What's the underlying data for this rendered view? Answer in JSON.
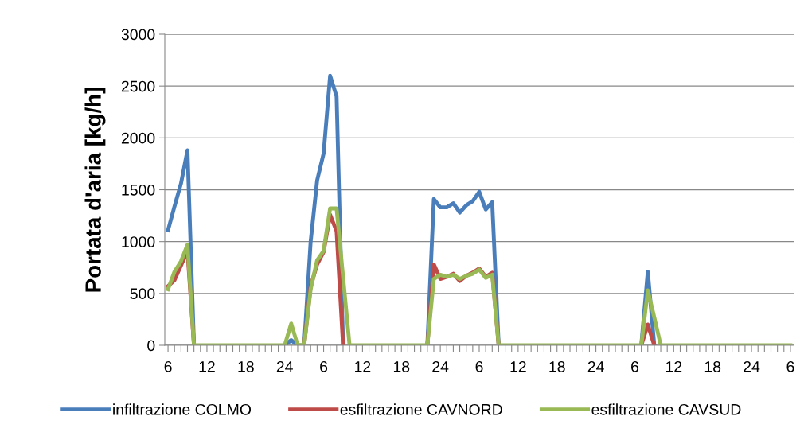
{
  "chart_data": {
    "type": "line",
    "ylabel": "Portata d'aria [kg/h]",
    "categories": [
      "6",
      null,
      null,
      null,
      null,
      null,
      "12",
      null,
      null,
      null,
      null,
      null,
      "18",
      null,
      null,
      null,
      null,
      null,
      "24",
      null,
      null,
      null,
      null,
      null,
      "6",
      null,
      null,
      null,
      null,
      null,
      "12",
      null,
      null,
      null,
      null,
      null,
      "18",
      null,
      null,
      null,
      null,
      null,
      "24",
      null,
      null,
      null,
      null,
      null,
      "6",
      null,
      null,
      null,
      null,
      null,
      "12",
      null,
      null,
      null,
      null,
      null,
      "18",
      null,
      null,
      null,
      null,
      null,
      "24",
      null,
      null,
      null,
      null,
      null,
      "6",
      null,
      null,
      null,
      null,
      null,
      "12",
      null,
      null,
      null,
      null,
      null,
      "18",
      null,
      null,
      null,
      null,
      null,
      "24",
      null,
      null,
      null,
      null,
      null,
      "6"
    ],
    "series": [
      {
        "name": "infiltrazione COLMO",
        "color": "#4a7ebb",
        "values": [
          1110,
          1340,
          1560,
          1880,
          0,
          null,
          null,
          null,
          null,
          null,
          null,
          null,
          null,
          null,
          null,
          null,
          null,
          null,
          0,
          50,
          0,
          0,
          1000,
          1590,
          1850,
          2600,
          2400,
          0,
          null,
          null,
          null,
          null,
          null,
          null,
          null,
          null,
          null,
          null,
          null,
          null,
          0,
          1410,
          1330,
          1330,
          1370,
          1280,
          1350,
          1390,
          1480,
          1310,
          1380,
          0,
          null,
          null,
          null,
          null,
          null,
          null,
          null,
          null,
          null,
          null,
          null,
          null,
          null,
          null,
          null,
          null,
          null,
          null,
          null,
          null,
          null,
          0,
          710,
          0,
          null,
          null,
          null,
          null,
          null,
          null,
          null,
          null,
          null,
          null,
          null,
          null,
          null,
          null,
          null,
          null,
          null,
          null,
          null,
          null,
          null
        ]
      },
      {
        "name": "esfiltrazione CAVNORD",
        "color": "#be4b48",
        "values": [
          570,
          630,
          770,
          910,
          0,
          null,
          null,
          null,
          null,
          null,
          null,
          null,
          null,
          null,
          null,
          null,
          null,
          null,
          null,
          null,
          null,
          0,
          570,
          780,
          900,
          1260,
          1100,
          0,
          null,
          null,
          null,
          null,
          null,
          null,
          null,
          null,
          null,
          null,
          null,
          null,
          0,
          780,
          640,
          660,
          690,
          620,
          670,
          700,
          740,
          660,
          700,
          0,
          null,
          null,
          null,
          null,
          null,
          null,
          null,
          null,
          null,
          null,
          null,
          null,
          null,
          null,
          null,
          null,
          null,
          null,
          null,
          null,
          null,
          0,
          200,
          0,
          null,
          null,
          null,
          null,
          null,
          null,
          null,
          null,
          null,
          null,
          null,
          null,
          null,
          null,
          null,
          null,
          null,
          null,
          null,
          null,
          null
        ]
      },
      {
        "name": "esfiltrazione CAVSUD",
        "color": "#98b954",
        "values": [
          540,
          710,
          810,
          970,
          0,
          0,
          0,
          0,
          0,
          0,
          0,
          0,
          0,
          0,
          0,
          0,
          0,
          0,
          0,
          210,
          0,
          0,
          540,
          820,
          910,
          1320,
          1320,
          660,
          0,
          0,
          0,
          0,
          0,
          0,
          0,
          0,
          0,
          0,
          0,
          0,
          0,
          640,
          680,
          660,
          680,
          640,
          670,
          690,
          730,
          650,
          680,
          0,
          0,
          0,
          0,
          0,
          0,
          0,
          0,
          0,
          0,
          0,
          0,
          0,
          0,
          0,
          0,
          0,
          0,
          0,
          0,
          0,
          0,
          0,
          530,
          270,
          0,
          0,
          0,
          0,
          0,
          0,
          0,
          0,
          0,
          0,
          0,
          0,
          0,
          0,
          0,
          0,
          0,
          0,
          0,
          0,
          0
        ]
      }
    ],
    "ylim": [
      0,
      3000
    ],
    "yticks": [
      0,
      500,
      1000,
      1500,
      2000,
      2500,
      3000
    ],
    "grid": "y",
    "legend": "bottom",
    "marker": "none",
    "line_style": "solid"
  }
}
